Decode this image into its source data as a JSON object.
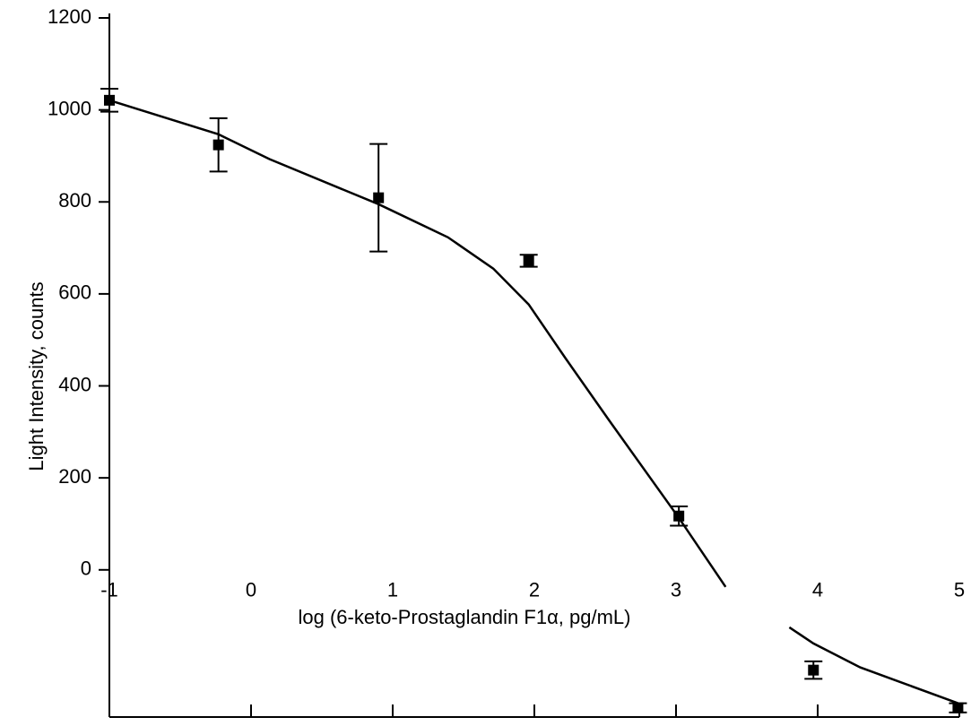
{
  "chart_data": {
    "type": "scatter",
    "xlabel": "log (6-keto-Prostaglandin F1α, pg/mL)",
    "ylabel": "Light Intensity, counts",
    "xlim": [
      -1,
      5
    ],
    "xticks": [
      -1,
      0,
      1,
      2,
      3,
      4,
      5
    ],
    "ylim": [
      -320,
      1200
    ],
    "yticks": [
      0,
      200,
      400,
      600,
      800,
      1000,
      1200
    ],
    "series": [
      {
        "x": [
          -1.0,
          -0.23,
          0.9,
          1.96,
          3.02,
          3.97,
          4.99
        ],
        "values": [
          1021,
          924,
          809,
          672,
          117,
          -218,
          -300
        ],
        "errors": [
          25,
          58,
          117,
          13,
          21,
          19,
          10
        ],
        "color": "#000000"
      }
    ],
    "curve": {
      "x": [
        -1,
        -0.23,
        0.13,
        0.9,
        1.39,
        1.71,
        1.96,
        2.22,
        2.53,
        3.02,
        3.35,
        null,
        3.8,
        3.97,
        4.3,
        4.99
      ],
      "values": [
        1021,
        947,
        893,
        795,
        723,
        655,
        577,
        460,
        324,
        113,
        -37,
        null,
        -125,
        -160,
        -212,
        -290
      ],
      "color": "#000000"
    }
  }
}
